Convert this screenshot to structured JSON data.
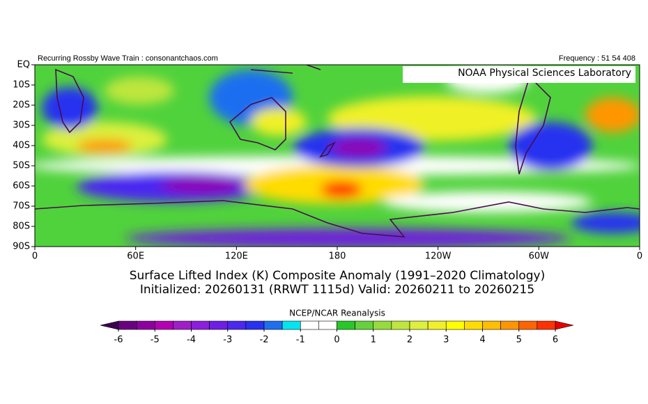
{
  "header": {
    "left": "Recurring Rossby Wave Train : consonantchaos.com",
    "right": "Frequency : 51 54 408",
    "credit": "NOAA Physical Sciences Laboratory"
  },
  "map": {
    "xlim": [
      0,
      360
    ],
    "ylim": [
      -90,
      0
    ],
    "xticks": [
      0,
      {
        "value": 60,
        "label": "60E"
      },
      {
        "value": 120,
        "label": "120E"
      },
      180,
      {
        "value": 240,
        "label": "120W"
      },
      {
        "value": 300,
        "label": "60W"
      },
      {
        "value": 360,
        "label": "0"
      }
    ],
    "yticks": [
      {
        "value": 0,
        "label": "EQ"
      },
      {
        "value": -10,
        "label": "10S"
      },
      {
        "value": -20,
        "label": "20S"
      },
      {
        "value": -30,
        "label": "30S"
      },
      {
        "value": -40,
        "label": "40S"
      },
      {
        "value": -50,
        "label": "50S"
      },
      {
        "value": -60,
        "label": "60S"
      },
      {
        "value": -70,
        "label": "70S"
      },
      {
        "value": -80,
        "label": "80S"
      },
      {
        "value": -90,
        "label": "90S"
      }
    ]
  },
  "title": [
    "Surface Lifted Index (K) Composite Anomaly (1991–2020 Climatology)",
    "Initialized: 20260131 (RRWT 1115d) Valid: 20260211 to 20260215"
  ],
  "colorbar": {
    "title": "NCEP/NCAR Reanalysis",
    "lim": [
      -6,
      6
    ],
    "ticks": [
      -6,
      -5,
      -4,
      -3,
      -2,
      -1,
      0,
      1,
      2,
      3,
      4,
      5,
      6
    ],
    "under_color": "#3c0050",
    "over_color": "#e60000",
    "colors": [
      "#3c0050",
      "#6a0080",
      "#8c00a0",
      "#b400b4",
      "#a01ec8",
      "#8c1edc",
      "#6e1ee6",
      "#4b28f0",
      "#2832f0",
      "#1e6ef0",
      "#00e6f0",
      "#ffffff",
      "#ffffff",
      "#28c828",
      "#64d23c",
      "#96dc3c",
      "#bee63c",
      "#dcf03c",
      "#f0f028",
      "#ffff00",
      "#ffdc00",
      "#ffbe00",
      "#ff9600",
      "#ff6400",
      "#ff3200",
      "#e60000"
    ]
  }
}
